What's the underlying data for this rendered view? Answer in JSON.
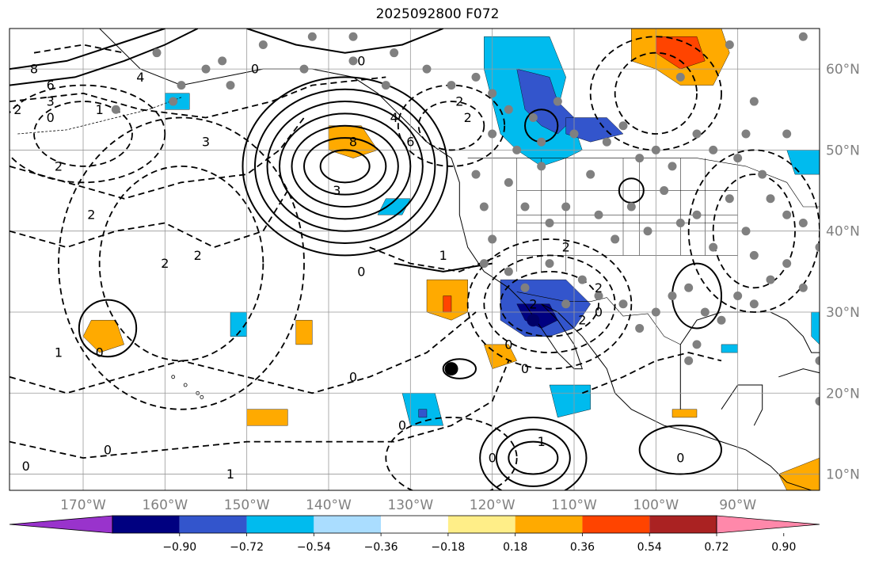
{
  "title": "2025092800 F072",
  "projection": {
    "lon_min": -179,
    "lon_max": -80,
    "lat_min": 8,
    "lat_max": 65
  },
  "lon_ticks": [
    {
      "value": -170,
      "label": "170°W"
    },
    {
      "value": -160,
      "label": "160°W"
    },
    {
      "value": -150,
      "label": "150°W"
    },
    {
      "value": -140,
      "label": "140°W"
    },
    {
      "value": -130,
      "label": "130°W"
    },
    {
      "value": -120,
      "label": "120°W"
    },
    {
      "value": -110,
      "label": "110°W"
    },
    {
      "value": -100,
      "label": "100°W"
    },
    {
      "value": -90,
      "label": "90°W"
    }
  ],
  "lat_ticks": [
    {
      "value": 10,
      "label": "10°N"
    },
    {
      "value": 20,
      "label": "20°N"
    },
    {
      "value": 30,
      "label": "30°N"
    },
    {
      "value": 40,
      "label": "40°N"
    },
    {
      "value": 50,
      "label": "50°N"
    },
    {
      "value": 60,
      "label": "60°N"
    }
  ],
  "colorbar": {
    "colors": [
      "#9933cc",
      "#000080",
      "#3355cc",
      "#00bbee",
      "#aaddff",
      "#ffffff",
      "#ffee88",
      "#ffaa00",
      "#ff4400",
      "#aa2222",
      "#ff88aa"
    ],
    "labels": [
      "−0.90",
      "−0.72",
      "−0.54",
      "−0.36",
      "−0.18",
      "0.18",
      "0.36",
      "0.54",
      "0.72",
      "0.90"
    ],
    "extend": "both"
  },
  "contour_labels": [
    "8",
    "6",
    "3",
    "2",
    "0",
    "1",
    "4",
    "0",
    "2",
    "3",
    "2",
    "8",
    "4",
    "0",
    "6",
    "3",
    "2",
    "2",
    "0",
    "1",
    "2",
    "0",
    "1",
    "0",
    "2",
    "2",
    "2",
    "0",
    "0",
    "2",
    "0",
    "1",
    "0",
    "0",
    "1",
    "2",
    "0",
    "0",
    "0"
  ],
  "stations_gray": [
    [
      -161,
      62
    ],
    [
      -159,
      56
    ],
    [
      -155,
      60
    ],
    [
      -152,
      58
    ],
    [
      -148,
      63
    ],
    [
      -142,
      64
    ],
    [
      -137,
      61
    ],
    [
      -132,
      62
    ],
    [
      -128,
      60
    ],
    [
      -125,
      58
    ],
    [
      -122,
      59
    ],
    [
      -120,
      57
    ],
    [
      -118,
      55
    ],
    [
      -115,
      54
    ],
    [
      -112,
      56
    ],
    [
      -110,
      52
    ],
    [
      -106,
      51
    ],
    [
      -104,
      53
    ],
    [
      -102,
      49
    ],
    [
      -100,
      50
    ],
    [
      -98,
      48
    ],
    [
      -95,
      52
    ],
    [
      -93,
      50
    ],
    [
      -90,
      49
    ],
    [
      -89,
      52
    ],
    [
      -87,
      47
    ],
    [
      -86,
      44
    ],
    [
      -84,
      42
    ],
    [
      -82,
      41
    ],
    [
      -80,
      38
    ],
    [
      -122,
      47
    ],
    [
      -121,
      43
    ],
    [
      -120,
      39
    ],
    [
      -118,
      46
    ],
    [
      -116,
      43
    ],
    [
      -114,
      48
    ],
    [
      -113,
      41
    ],
    [
      -111,
      43
    ],
    [
      -108,
      47
    ],
    [
      -107,
      42
    ],
    [
      -105,
      39
    ],
    [
      -103,
      43
    ],
    [
      -101,
      40
    ],
    [
      -99,
      45
    ],
    [
      -97,
      41
    ],
    [
      -95,
      42
    ],
    [
      -93,
      38
    ],
    [
      -91,
      44
    ],
    [
      -89,
      40
    ],
    [
      -88,
      37
    ],
    [
      -86,
      34
    ],
    [
      -84,
      36
    ],
    [
      -82,
      33
    ],
    [
      -121,
      36
    ],
    [
      -118,
      35
    ],
    [
      -116,
      33
    ],
    [
      -113,
      36
    ],
    [
      -111,
      31
    ],
    [
      -109,
      34
    ],
    [
      -107,
      32
    ],
    [
      -104,
      31
    ],
    [
      -102,
      28
    ],
    [
      -100,
      30
    ],
    [
      -98,
      32
    ],
    [
      -96,
      33
    ],
    [
      -94,
      30
    ],
    [
      -92,
      29
    ],
    [
      -90,
      32
    ],
    [
      -88,
      31
    ],
    [
      -95,
      26
    ],
    [
      -96,
      24
    ],
    [
      -80,
      24
    ],
    [
      -80,
      19
    ],
    [
      -166,
      55
    ],
    [
      -158,
      58
    ],
    [
      -153,
      61
    ],
    [
      -143,
      60
    ],
    [
      -137,
      64
    ],
    [
      -133,
      58
    ],
    [
      -120,
      52
    ],
    [
      -114,
      51
    ],
    [
      -117,
      50
    ],
    [
      -88,
      56
    ],
    [
      -84,
      52
    ],
    [
      -82,
      64
    ],
    [
      -91,
      63
    ],
    [
      -97,
      59
    ]
  ],
  "stations_black": [
    [
      -125,
      23
    ]
  ],
  "stations_navy": [
    [
      -115,
      29
    ]
  ],
  "shading": [
    {
      "c": 3,
      "pts": [
        [
          -121,
          64
        ],
        [
          -113,
          64
        ],
        [
          -111,
          59
        ],
        [
          -112,
          55
        ],
        [
          -110,
          53
        ],
        [
          -109,
          50
        ],
        [
          -111,
          49
        ],
        [
          -114,
          48
        ],
        [
          -117,
          50
        ],
        [
          -119,
          52
        ],
        [
          -120,
          56
        ],
        [
          -121,
          60
        ]
      ]
    },
    {
      "c": 2,
      "pts": [
        [
          -117,
          60
        ],
        [
          -113,
          59
        ],
        [
          -112,
          56
        ],
        [
          -110,
          54
        ],
        [
          -112,
          52
        ],
        [
          -114,
          53
        ],
        [
          -116,
          55
        ]
      ]
    },
    {
      "c": 2,
      "pts": [
        [
          -111,
          54
        ],
        [
          -106,
          54
        ],
        [
          -104,
          52
        ],
        [
          -108,
          51
        ],
        [
          -111,
          52
        ]
      ]
    },
    {
      "c": 7,
      "pts": [
        [
          -103,
          65
        ],
        [
          -92,
          65
        ],
        [
          -91,
          62
        ],
        [
          -93,
          58
        ],
        [
          -97,
          58
        ],
        [
          -100,
          60
        ],
        [
          -103,
          61
        ]
      ]
    },
    {
      "c": 8,
      "pts": [
        [
          -100,
          64
        ],
        [
          -95,
          64
        ],
        [
          -94,
          61
        ],
        [
          -97,
          60
        ],
        [
          -100,
          62
        ]
      ]
    },
    {
      "c": 7,
      "pts": [
        [
          -140,
          53
        ],
        [
          -136,
          53
        ],
        [
          -134,
          50
        ],
        [
          -137,
          49
        ],
        [
          -140,
          50
        ]
      ]
    },
    {
      "c": 3,
      "pts": [
        [
          -160,
          57
        ],
        [
          -157,
          57
        ],
        [
          -157,
          55
        ],
        [
          -160,
          55
        ]
      ]
    },
    {
      "c": 3,
      "pts": [
        [
          -133,
          44
        ],
        [
          -130,
          44
        ],
        [
          -131,
          42
        ],
        [
          -134,
          42
        ]
      ]
    },
    {
      "c": 2,
      "pts": [
        [
          -119,
          34
        ],
        [
          -111,
          34
        ],
        [
          -108,
          31
        ],
        [
          -110,
          28
        ],
        [
          -113,
          27
        ],
        [
          -116,
          27
        ],
        [
          -119,
          29
        ]
      ]
    },
    {
      "c": 1,
      "pts": [
        [
          -117,
          31
        ],
        [
          -113,
          31
        ],
        [
          -112,
          29
        ],
        [
          -114,
          28
        ],
        [
          -116,
          29
        ]
      ]
    },
    {
      "c": 7,
      "pts": [
        [
          -128,
          34
        ],
        [
          -123,
          34
        ],
        [
          -123,
          30
        ],
        [
          -125,
          29
        ],
        [
          -128,
          30
        ]
      ]
    },
    {
      "c": 8,
      "pts": [
        [
          -126,
          32
        ],
        [
          -125,
          32
        ],
        [
          -125,
          30
        ],
        [
          -126,
          30
        ]
      ]
    },
    {
      "c": 7,
      "pts": [
        [
          -169,
          29
        ],
        [
          -166,
          29
        ],
        [
          -165,
          26
        ],
        [
          -168,
          25
        ],
        [
          -170,
          27
        ]
      ]
    },
    {
      "c": 7,
      "pts": [
        [
          -144,
          29
        ],
        [
          -142,
          29
        ],
        [
          -142,
          26
        ],
        [
          -144,
          26
        ]
      ]
    },
    {
      "c": 3,
      "pts": [
        [
          -152,
          30
        ],
        [
          -150,
          30
        ],
        [
          -150,
          27
        ],
        [
          -152,
          27
        ]
      ]
    },
    {
      "c": 7,
      "pts": [
        [
          -121,
          26
        ],
        [
          -118,
          26
        ],
        [
          -117,
          24
        ],
        [
          -120,
          23
        ]
      ]
    },
    {
      "c": 3,
      "pts": [
        [
          -113,
          21
        ],
        [
          -108,
          21
        ],
        [
          -108,
          18
        ],
        [
          -112,
          17
        ]
      ]
    },
    {
      "c": 3,
      "pts": [
        [
          -131,
          20
        ],
        [
          -127,
          20
        ],
        [
          -126,
          16
        ],
        [
          -130,
          16
        ]
      ]
    },
    {
      "c": 2,
      "pts": [
        [
          -129,
          18
        ],
        [
          -128,
          18
        ],
        [
          -128,
          17
        ],
        [
          -129,
          17
        ]
      ]
    },
    {
      "c": 7,
      "pts": [
        [
          -150,
          18
        ],
        [
          -145,
          18
        ],
        [
          -145,
          16
        ],
        [
          -150,
          16
        ]
      ]
    },
    {
      "c": 7,
      "pts": [
        [
          -98,
          18
        ],
        [
          -95,
          18
        ],
        [
          -95,
          17
        ],
        [
          -98,
          17
        ]
      ]
    },
    {
      "c": 7,
      "pts": [
        [
          -85,
          10
        ],
        [
          -80,
          12
        ],
        [
          -80,
          8
        ],
        [
          -84,
          8
        ]
      ]
    },
    {
      "c": 3,
      "pts": [
        [
          -84,
          50
        ],
        [
          -80,
          50
        ],
        [
          -80,
          47
        ],
        [
          -83,
          47
        ]
      ]
    },
    {
      "c": 3,
      "pts": [
        [
          -81,
          30
        ],
        [
          -80,
          30
        ],
        [
          -80,
          26
        ],
        [
          -81,
          27
        ]
      ]
    },
    {
      "c": 3,
      "pts": [
        [
          -92,
          26
        ],
        [
          -90,
          26
        ],
        [
          -90,
          25
        ],
        [
          -92,
          25
        ]
      ]
    }
  ],
  "solid_contours": [
    {
      "cx": -138,
      "cy": 48,
      "rx": [
        3,
        5,
        6.5,
        8,
        9.5,
        11,
        12.5
      ],
      "ry": [
        2,
        3.5,
        5,
        6.5,
        8,
        9.5,
        11
      ]
    },
    {
      "cx": -167,
      "cy": 28,
      "rx": [
        3.5
      ],
      "ry": [
        3.5
      ]
    },
    {
      "cx": -115,
      "cy": 12,
      "rx": [
        3,
        4.5,
        6.5
      ],
      "ry": [
        2,
        3.5,
        5
      ]
    },
    {
      "cx": -97,
      "cy": 13,
      "rx": [
        5
      ],
      "ry": [
        3
      ]
    },
    {
      "cx": -95,
      "cy": 32,
      "rx": [
        3
      ],
      "ry": [
        4
      ]
    },
    {
      "cx": -103,
      "cy": 45,
      "rx": [
        1.5
      ],
      "ry": [
        1.5
      ]
    },
    {
      "cx": -114,
      "cy": 53,
      "rx": [
        2
      ],
      "ry": [
        2
      ]
    },
    {
      "cx": -124,
      "cy": 23,
      "rx": [
        2
      ],
      "ry": [
        1.2
      ]
    }
  ],
  "dashed_contours": [
    {
      "cx": -125,
      "cy": 53,
      "rx": [
        4,
        6.5
      ],
      "ry": [
        3,
        5
      ]
    },
    {
      "cx": -113,
      "cy": 31,
      "rx": [
        6,
        8,
        10
      ],
      "ry": [
        4,
        6,
        8
      ]
    },
    {
      "cx": -158,
      "cy": 36,
      "rx": [
        10,
        15
      ],
      "ry": [
        12,
        18
      ]
    },
    {
      "cx": -125,
      "cy": 12,
      "rx": [
        8
      ],
      "ry": [
        5
      ]
    },
    {
      "cx": -88,
      "cy": 40,
      "rx": [
        5,
        8
      ],
      "ry": [
        7,
        10
      ]
    },
    {
      "cx": -100,
      "cy": 57,
      "rx": [
        5,
        8
      ],
      "ry": [
        5,
        7
      ]
    },
    {
      "cx": -170,
      "cy": 52,
      "rx": [
        6,
        10
      ],
      "ry": [
        4,
        6
      ]
    }
  ]
}
